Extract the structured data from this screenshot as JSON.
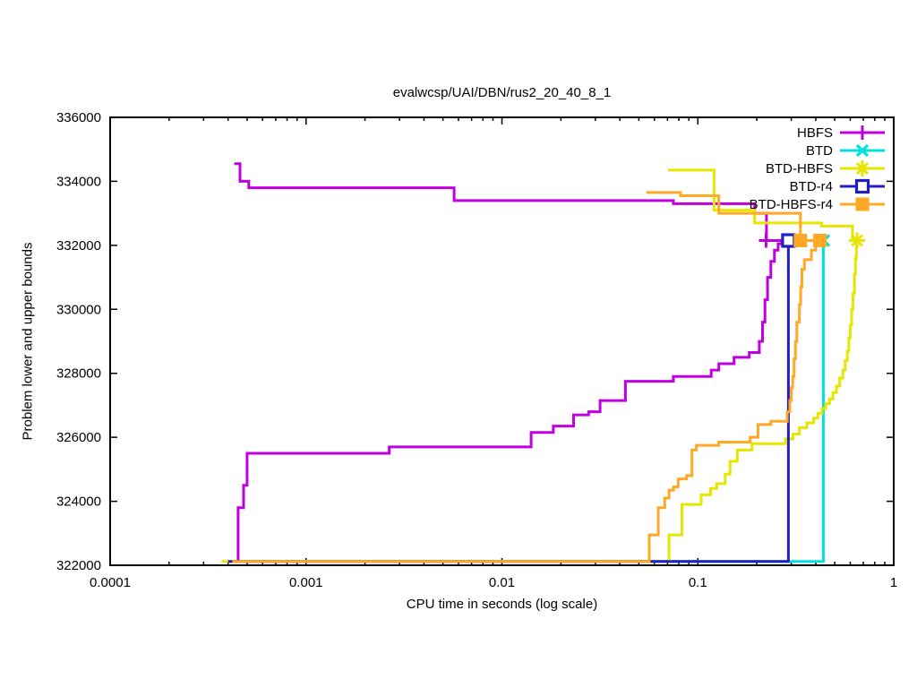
{
  "chart_data": {
    "type": "line",
    "title": "evalwcsp/UAI/DBN/rus2_20_40_8_1",
    "xlabel": "CPU time in seconds (log scale)",
    "ylabel": "Problem lower and upper bounds",
    "x_scale": "log",
    "xlim": [
      0.0001,
      1
    ],
    "ylim": [
      322000,
      336000
    ],
    "grid": false,
    "legend_position": "top-right",
    "x_ticks": [
      {
        "v": 0.0001,
        "label": "0.0001"
      },
      {
        "v": 0.001,
        "label": "0.001"
      },
      {
        "v": 0.01,
        "label": "0.01"
      },
      {
        "v": 0.1,
        "label": "0.1"
      },
      {
        "v": 1,
        "label": "1"
      }
    ],
    "y_ticks": [
      {
        "v": 322000,
        "label": "322000"
      },
      {
        "v": 324000,
        "label": "324000"
      },
      {
        "v": 326000,
        "label": "326000"
      },
      {
        "v": 328000,
        "label": "328000"
      },
      {
        "v": 330000,
        "label": "330000"
      },
      {
        "v": 332000,
        "label": "332000"
      },
      {
        "v": 334000,
        "label": "334000"
      },
      {
        "v": 336000,
        "label": "336000"
      }
    ],
    "optimum_value": 332150,
    "series": [
      {
        "name": "HBFS",
        "color": "#c000e0",
        "marker": "plus",
        "lines": [
          [
            [
              0.00043,
              334550
            ],
            [
              0.00046,
              334550
            ],
            [
              0.00046,
              334000
            ],
            [
              0.00051,
              334000
            ],
            [
              0.00051,
              333800
            ],
            [
              0.0057,
              333800
            ],
            [
              0.0057,
              333400
            ],
            [
              0.075,
              333400
            ],
            [
              0.075,
              333300
            ],
            [
              0.195,
              333300
            ],
            [
              0.195,
              333000
            ],
            [
              0.224,
              333000
            ],
            [
              0.224,
              332150
            ],
            [
              0.268,
              332150
            ]
          ],
          [
            [
              0.00045,
              322120
            ],
            [
              0.00045,
              323800
            ],
            [
              0.00048,
              323800
            ],
            [
              0.00048,
              324500
            ],
            [
              0.0005,
              324500
            ],
            [
              0.0005,
              325500
            ],
            [
              0.00266,
              325500
            ],
            [
              0.00266,
              325700
            ],
            [
              0.0141,
              325700
            ],
            [
              0.0141,
              326150
            ],
            [
              0.0183,
              326150
            ],
            [
              0.0183,
              326350
            ],
            [
              0.0232,
              326350
            ],
            [
              0.0232,
              326700
            ],
            [
              0.0277,
              326700
            ],
            [
              0.0277,
              326800
            ],
            [
              0.0317,
              326800
            ],
            [
              0.0317,
              327150
            ],
            [
              0.0427,
              327150
            ],
            [
              0.0427,
              327750
            ],
            [
              0.075,
              327750
            ],
            [
              0.075,
              327900
            ],
            [
              0.117,
              327900
            ],
            [
              0.117,
              328100
            ],
            [
              0.128,
              328100
            ],
            [
              0.128,
              328300
            ],
            [
              0.153,
              328300
            ],
            [
              0.153,
              328500
            ],
            [
              0.183,
              328500
            ],
            [
              0.183,
              328650
            ],
            [
              0.206,
              328650
            ],
            [
              0.206,
              329000
            ],
            [
              0.214,
              329000
            ],
            [
              0.214,
              329600
            ],
            [
              0.22,
              329600
            ],
            [
              0.22,
              330300
            ],
            [
              0.227,
              330300
            ],
            [
              0.227,
              331000
            ],
            [
              0.236,
              331000
            ],
            [
              0.236,
              331500
            ],
            [
              0.246,
              331500
            ],
            [
              0.246,
              331850
            ],
            [
              0.257,
              331850
            ],
            [
              0.257,
              332050
            ],
            [
              0.268,
              332050
            ],
            [
              0.268,
              332150
            ]
          ]
        ],
        "end_markers": [
          [
            0.223,
            332150
          ]
        ]
      },
      {
        "name": "BTD",
        "color": "#00e0e0",
        "marker": "x",
        "lines": [
          [
            [
              0.0004,
              322120
            ],
            [
              0.437,
              322120
            ],
            [
              0.437,
              332150
            ]
          ]
        ],
        "end_markers": [
          [
            0.44,
            332150
          ]
        ]
      },
      {
        "name": "BTD-HBFS",
        "color": "#e6e600",
        "marker": "star",
        "lines": [
          [
            [
              0.0705,
              334350
            ],
            [
              0.121,
              334350
            ],
            [
              0.121,
              333100
            ],
            [
              0.195,
              333100
            ],
            [
              0.195,
              332700
            ],
            [
              0.428,
              332700
            ],
            [
              0.428,
              332600
            ],
            [
              0.616,
              332600
            ],
            [
              0.616,
              332150
            ],
            [
              0.65,
              332150
            ]
          ],
          [
            [
              0.00037,
              322120
            ],
            [
              0.0713,
              322120
            ],
            [
              0.0713,
              322950
            ],
            [
              0.083,
              322950
            ],
            [
              0.083,
              323900
            ],
            [
              0.104,
              323900
            ],
            [
              0.104,
              324200
            ],
            [
              0.116,
              324200
            ],
            [
              0.116,
              324400
            ],
            [
              0.125,
              324400
            ],
            [
              0.125,
              324550
            ],
            [
              0.138,
              324550
            ],
            [
              0.138,
              324850
            ],
            [
              0.146,
              324850
            ],
            [
              0.146,
              325250
            ],
            [
              0.159,
              325250
            ],
            [
              0.159,
              325600
            ],
            [
              0.189,
              325600
            ],
            [
              0.189,
              325800
            ],
            [
              0.28,
              325800
            ],
            [
              0.28,
              325950
            ],
            [
              0.306,
              325950
            ],
            [
              0.306,
              326100
            ],
            [
              0.33,
              326100
            ],
            [
              0.33,
              326300
            ],
            [
              0.36,
              326300
            ],
            [
              0.36,
              326450
            ],
            [
              0.39,
              326450
            ],
            [
              0.39,
              326600
            ],
            [
              0.41,
              326600
            ],
            [
              0.41,
              326750
            ],
            [
              0.43,
              326750
            ],
            [
              0.43,
              326900
            ],
            [
              0.45,
              326900
            ],
            [
              0.45,
              327050
            ],
            [
              0.47,
              327050
            ],
            [
              0.47,
              327200
            ],
            [
              0.49,
              327200
            ],
            [
              0.49,
              327400
            ],
            [
              0.51,
              327400
            ],
            [
              0.51,
              327600
            ],
            [
              0.53,
              327600
            ],
            [
              0.53,
              327850
            ],
            [
              0.55,
              327850
            ],
            [
              0.55,
              328100
            ],
            [
              0.565,
              328100
            ],
            [
              0.565,
              328400
            ],
            [
              0.58,
              328400
            ],
            [
              0.58,
              328700
            ],
            [
              0.59,
              328700
            ],
            [
              0.59,
              329100
            ],
            [
              0.6,
              329100
            ],
            [
              0.6,
              329500
            ],
            [
              0.61,
              329500
            ],
            [
              0.61,
              330000
            ],
            [
              0.62,
              330000
            ],
            [
              0.62,
              330500
            ],
            [
              0.63,
              330500
            ],
            [
              0.63,
              331100
            ],
            [
              0.638,
              331100
            ],
            [
              0.638,
              331600
            ],
            [
              0.645,
              331600
            ],
            [
              0.645,
              332000
            ],
            [
              0.65,
              332000
            ],
            [
              0.65,
              332150
            ]
          ]
        ],
        "end_markers": [
          [
            0.65,
            332150
          ]
        ]
      },
      {
        "name": "BTD-r4",
        "color": "#2020c0",
        "marker": "square-open",
        "lines": [
          [
            [
              0.0004,
              322120
            ],
            [
              0.29,
              322120
            ],
            [
              0.29,
              332150
            ]
          ]
        ],
        "end_markers": [
          [
            0.29,
            332150
          ]
        ]
      },
      {
        "name": "BTD-HBFS-r4",
        "color": "#ffa826",
        "marker": "square-filled",
        "lines": [
          [
            [
              0.0547,
              333650
            ],
            [
              0.0816,
              333650
            ],
            [
              0.0816,
              333550
            ],
            [
              0.128,
              333550
            ],
            [
              0.128,
              333000
            ],
            [
              0.334,
              333000
            ],
            [
              0.334,
              332150
            ],
            [
              0.42,
              332150
            ]
          ],
          [
            [
              0.00042,
              322120
            ],
            [
              0.0565,
              322120
            ],
            [
              0.0565,
              322950
            ],
            [
              0.0628,
              322950
            ],
            [
              0.0628,
              323800
            ],
            [
              0.0678,
              323800
            ],
            [
              0.0678,
              324100
            ],
            [
              0.0713,
              324100
            ],
            [
              0.0713,
              324350
            ],
            [
              0.0752,
              324350
            ],
            [
              0.0752,
              324450
            ],
            [
              0.0794,
              324450
            ],
            [
              0.0794,
              324700
            ],
            [
              0.0875,
              324700
            ],
            [
              0.0875,
              324800
            ],
            [
              0.0933,
              324800
            ],
            [
              0.0933,
              325600
            ],
            [
              0.0984,
              325600
            ],
            [
              0.0984,
              325750
            ],
            [
              0.128,
              325750
            ],
            [
              0.128,
              325850
            ],
            [
              0.185,
              325850
            ],
            [
              0.185,
              326000
            ],
            [
              0.203,
              326000
            ],
            [
              0.203,
              326400
            ],
            [
              0.236,
              326400
            ],
            [
              0.236,
              326500
            ],
            [
              0.286,
              326500
            ],
            [
              0.286,
              326800
            ],
            [
              0.295,
              326800
            ],
            [
              0.295,
              327150
            ],
            [
              0.3,
              327150
            ],
            [
              0.3,
              327550
            ],
            [
              0.305,
              327550
            ],
            [
              0.305,
              327900
            ],
            [
              0.31,
              327900
            ],
            [
              0.31,
              328450
            ],
            [
              0.315,
              328450
            ],
            [
              0.315,
              329000
            ],
            [
              0.32,
              329000
            ],
            [
              0.32,
              329600
            ],
            [
              0.33,
              329600
            ],
            [
              0.33,
              330150
            ],
            [
              0.335,
              330150
            ],
            [
              0.335,
              330700
            ],
            [
              0.34,
              330700
            ],
            [
              0.34,
              331250
            ],
            [
              0.35,
              331250
            ],
            [
              0.35,
              331550
            ],
            [
              0.38,
              331550
            ],
            [
              0.38,
              331850
            ],
            [
              0.4,
              331850
            ],
            [
              0.4,
              332000
            ],
            [
              0.42,
              332000
            ],
            [
              0.42,
              332150
            ]
          ]
        ],
        "end_markers": [
          [
            0.334,
            332150
          ],
          [
            0.42,
            332150
          ]
        ]
      }
    ]
  }
}
